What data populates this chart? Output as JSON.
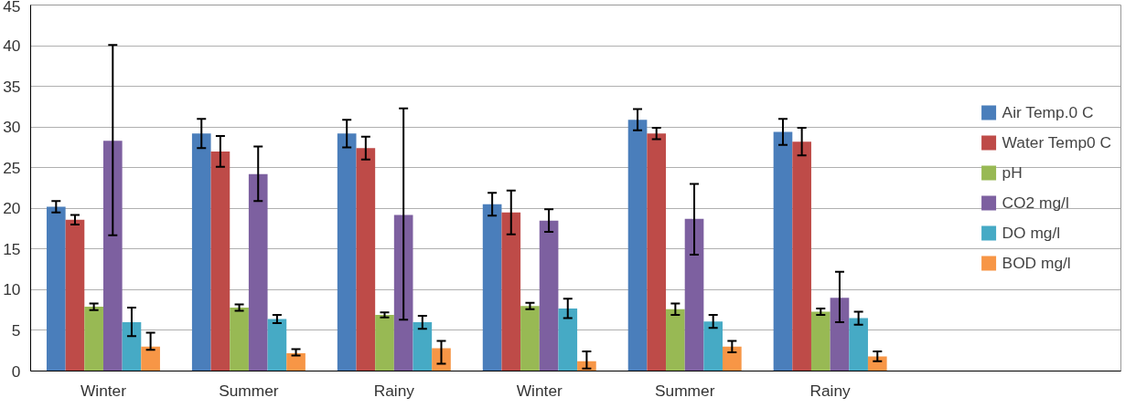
{
  "chart_data": {
    "type": "bar",
    "categories": [
      "Winter",
      "Summer",
      "Rainy",
      "Winter",
      "Summer",
      "Rainy"
    ],
    "series": [
      {
        "name": "Air Temp.0 C",
        "color": "#4a7ebb",
        "values": [
          20.2,
          29.2,
          29.2,
          20.5,
          30.9,
          29.4
        ],
        "errors": [
          0.7,
          1.8,
          1.7,
          1.4,
          1.3,
          1.6
        ]
      },
      {
        "name": "Water Temp0 C",
        "color": "#be4b48",
        "values": [
          18.6,
          27.0,
          27.4,
          19.5,
          29.2,
          28.2
        ],
        "errors": [
          0.6,
          1.9,
          1.4,
          2.7,
          0.7,
          1.7
        ]
      },
      {
        "name": "pH",
        "color": "#98b954",
        "values": [
          7.9,
          7.8,
          6.9,
          8.0,
          7.6,
          7.3
        ],
        "errors": [
          0.4,
          0.4,
          0.3,
          0.4,
          0.7,
          0.4
        ]
      },
      {
        "name": "CO2 mg/l",
        "color": "#7d60a0",
        "values": [
          28.3,
          24.2,
          19.2,
          18.5,
          18.7,
          9.0
        ],
        "errors": [
          [
            16.7,
            40.1
          ],
          [
            20.9,
            27.6
          ],
          [
            6.3,
            32.3
          ],
          [
            17.1,
            19.9
          ],
          [
            14.3,
            23.0
          ],
          [
            6.0,
            12.2
          ]
        ]
      },
      {
        "name": "DO mg/l",
        "color": "#46aac5",
        "values": [
          6.0,
          6.4,
          6.0,
          7.7,
          6.1,
          6.5
        ],
        "errors": [
          [
            4.3,
            7.8
          ],
          0.5,
          0.8,
          1.2,
          0.8,
          0.8
        ]
      },
      {
        "name": "BOD mg/l",
        "color": "#f79646",
        "values": [
          3.0,
          2.2,
          2.8,
          1.2,
          3.0,
          1.8
        ],
        "errors": [
          [
            2.6,
            4.7
          ],
          [
            1.9,
            2.7
          ],
          [
            0.9,
            3.7
          ],
          [
            0.3,
            2.4
          ],
          0.7,
          0.6
        ]
      }
    ],
    "ylim": [
      0,
      45
    ],
    "yticks": [
      0,
      5,
      10,
      15,
      20,
      25,
      30,
      35,
      40,
      45
    ],
    "grid": "y",
    "legend": "right"
  }
}
